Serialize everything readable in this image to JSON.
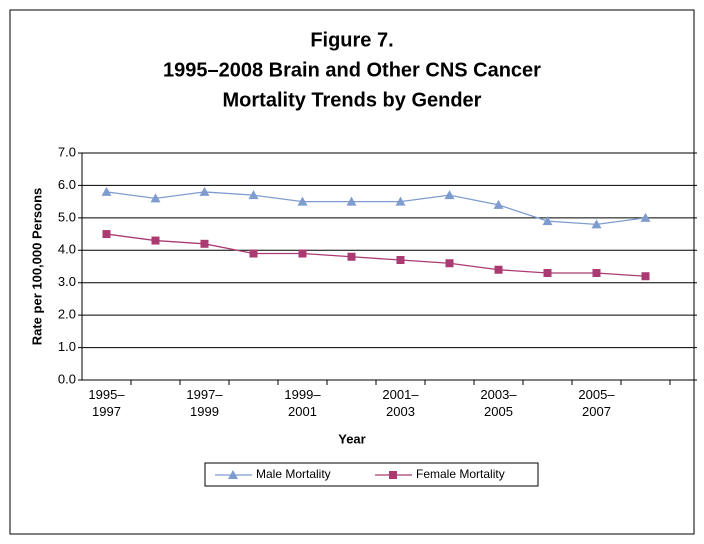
{
  "chart_data": {
    "type": "line",
    "title": [
      "Figure 7.",
      "1995–2008 Brain and Other CNS Cancer",
      "Mortality Trends by Gender"
    ],
    "xlabel": "Year",
    "ylabel": "Rate per 100,000 Persons",
    "categories": [
      "1995–1997",
      null,
      "1997–1999",
      null,
      "1999–2001",
      null,
      "2001–2003",
      null,
      "2003–2005",
      null,
      "2005–2007",
      null
    ],
    "series": [
      {
        "name": "Male Mortality",
        "color": "#7f9ccf",
        "marker": "triangle",
        "values": [
          5.8,
          5.6,
          5.8,
          5.7,
          5.5,
          5.5,
          5.5,
          5.7,
          5.4,
          4.9,
          4.8,
          5.0
        ]
      },
      {
        "name": "Female Mortality",
        "color": "#ab3a72",
        "marker": "square",
        "values": [
          4.5,
          4.3,
          4.2,
          3.9,
          3.9,
          3.8,
          3.7,
          3.6,
          3.4,
          3.3,
          3.3,
          3.2
        ]
      }
    ],
    "ylim": [
      0,
      7
    ],
    "yticks": [
      {
        "value": 0,
        "label": "0.0"
      },
      {
        "value": 1,
        "label": "1.0"
      },
      {
        "value": 2,
        "label": "2.0"
      },
      {
        "value": 3,
        "label": "3.0"
      },
      {
        "value": 4,
        "label": "4.0"
      },
      {
        "value": 5,
        "label": "5.0"
      },
      {
        "value": 6,
        "label": "6.0"
      },
      {
        "value": 7,
        "label": "7.0"
      }
    ],
    "grid": true,
    "legend": "bottom"
  }
}
